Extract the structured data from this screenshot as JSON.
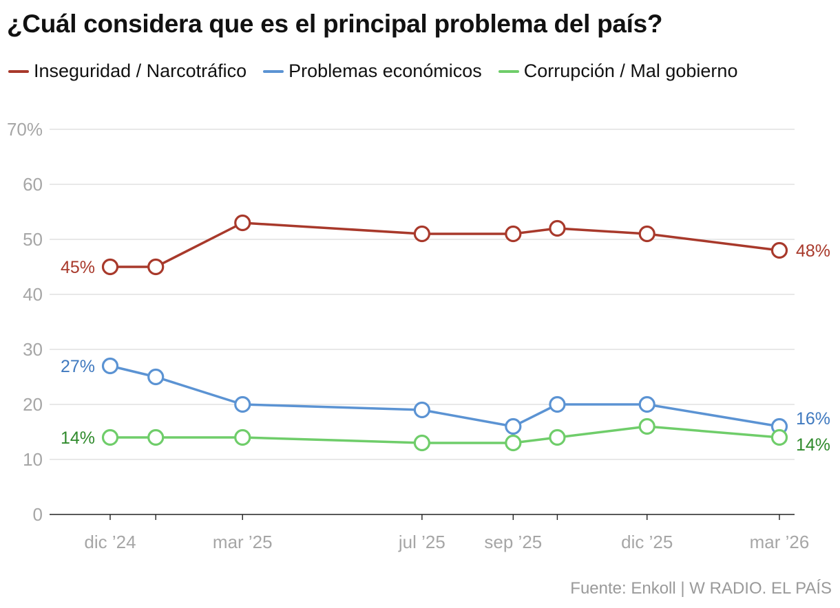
{
  "title": "¿Cuál considera que es el principal problema del país?",
  "source": "Fuente: Enkoll | W RADIO. EL PAÍS",
  "legend": [
    {
      "label": "Inseguridad / Narcotráfico",
      "color": "#a8392b"
    },
    {
      "label": "Problemas económicos",
      "color": "#5b93d3"
    },
    {
      "label": "Corrupción / Mal gobierno",
      "color": "#6fcd6a"
    }
  ],
  "chart_data": {
    "type": "line",
    "title": "¿Cuál considera que es el principal problema del país?",
    "xlabel": "",
    "ylabel": "",
    "ylim": [
      0,
      70
    ],
    "yticks": [
      0,
      10,
      20,
      30,
      40,
      50,
      60,
      70
    ],
    "ytick_labels": [
      "0",
      "10",
      "20",
      "30",
      "40",
      "50",
      "60",
      "70%"
    ],
    "x_axis": {
      "type": "time",
      "ticks": [
        {
          "date": "2024-12-01",
          "label": "dic ’24"
        },
        {
          "date": "2025-03-01",
          "label": "mar ’25"
        },
        {
          "date": "2025-07-01",
          "label": "jul ’25"
        },
        {
          "date": "2025-09-01",
          "label": "sep ’25"
        },
        {
          "date": "2025-12-01",
          "label": "dic ’25"
        },
        {
          "date": "2026-03-01",
          "label": "mar ’26"
        }
      ]
    },
    "x": [
      "2024-12-01",
      "2025-01-01",
      "2025-03-01",
      "2025-07-01",
      "2025-09-01",
      "2025-10-01",
      "2025-12-01",
      "2026-03-01"
    ],
    "series": [
      {
        "name": "Inseguridad / Narcotráfico",
        "color": "#a8392b",
        "label_color": "#a8392b",
        "values": [
          45,
          45,
          53,
          51,
          51,
          52,
          51,
          48
        ]
      },
      {
        "name": "Problemas económicos",
        "color": "#5b93d3",
        "label_color": "#3f79bf",
        "values": [
          27,
          25,
          20,
          19,
          16,
          20,
          20,
          16
        ]
      },
      {
        "name": "Corrupción / Mal gobierno",
        "color": "#6fcd6a",
        "label_color": "#2f8a2c",
        "values": [
          14,
          14,
          14,
          13,
          13,
          14,
          16,
          14
        ]
      }
    ],
    "start_labels": [
      "45%",
      "27%",
      "14%"
    ],
    "end_labels": [
      "48%",
      "16%",
      "14%"
    ],
    "grid": true,
    "legend_position": "top-left"
  }
}
